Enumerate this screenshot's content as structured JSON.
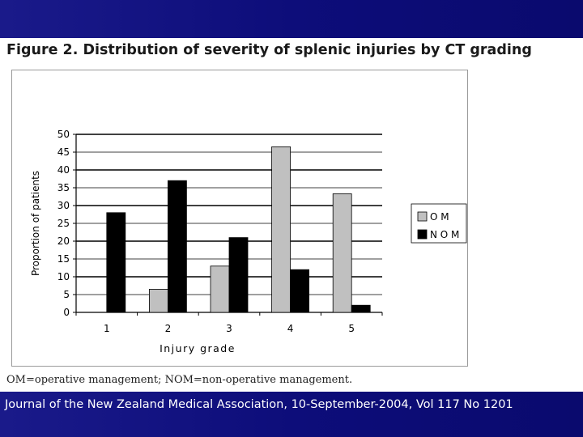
{
  "slide": {
    "figure_title": "Figure 2. Distribution of severity of splenic injuries by CT grading",
    "footnote": "OM=operative management; NOM=non-operative management.",
    "citation": "Journal of the New Zealand Medical Association, 10-September-2004, Vol 117 No 1201",
    "band_color": "#0d0d7a"
  },
  "chart_data": {
    "type": "bar",
    "title": "",
    "xlabel": "Injury grade",
    "ylabel": "Proportion of patients",
    "categories": [
      "1",
      "2",
      "3",
      "4",
      "5"
    ],
    "ylim": [
      0,
      50
    ],
    "yticks": [
      0,
      5,
      10,
      15,
      20,
      25,
      30,
      35,
      40,
      45,
      50
    ],
    "grid": true,
    "legend_position": "right",
    "series": [
      {
        "name": "O M",
        "color": "#c0c0c0",
        "values": [
          0,
          6.5,
          13,
          46.5,
          33.3
        ]
      },
      {
        "name": "N O M",
        "color": "#000000",
        "values": [
          28,
          37,
          21,
          12,
          2
        ]
      }
    ]
  }
}
